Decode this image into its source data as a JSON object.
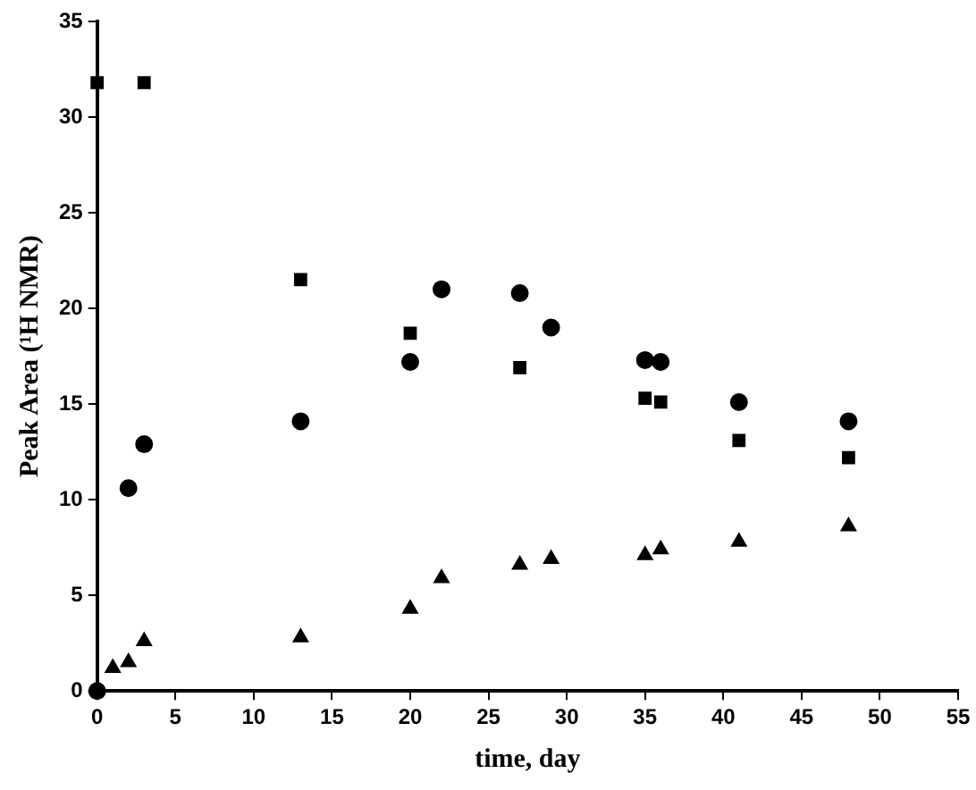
{
  "chart_data": {
    "type": "scatter",
    "xlabel": "time, day",
    "ylabel": "Peak Area (¹H NMR)",
    "xlim": [
      0,
      55
    ],
    "xticks": [
      0,
      5,
      10,
      15,
      20,
      25,
      30,
      35,
      40,
      45,
      50,
      55
    ],
    "ylim": [
      0,
      35
    ],
    "yticks": [
      0,
      5,
      10,
      15,
      20,
      25,
      30,
      35
    ],
    "grid": false,
    "legend": false,
    "series": [
      {
        "color": "#000000",
        "marker": "square",
        "x": [
          0,
          3,
          13,
          20,
          27,
          35,
          36,
          41,
          48
        ],
        "values": [
          31.8,
          31.8,
          21.5,
          18.7,
          16.9,
          15.3,
          15.1,
          13.1,
          12.2
        ]
      },
      {
        "color": "#000000",
        "marker": "circle",
        "x": [
          0,
          2,
          3,
          13,
          20,
          22,
          27,
          29,
          35,
          36,
          41,
          48
        ],
        "values": [
          0,
          10.6,
          12.9,
          14.1,
          17.2,
          21.0,
          20.8,
          19.0,
          17.3,
          17.2,
          15.1,
          14.1
        ]
      },
      {
        "color": "#000000",
        "marker": "triangle",
        "x": [
          1,
          2,
          3,
          13,
          20,
          22,
          27,
          29,
          35,
          36,
          41,
          48
        ],
        "values": [
          1.2,
          1.5,
          2.6,
          2.8,
          4.3,
          5.9,
          6.6,
          6.9,
          7.1,
          7.4,
          7.8,
          8.6
        ]
      }
    ]
  }
}
